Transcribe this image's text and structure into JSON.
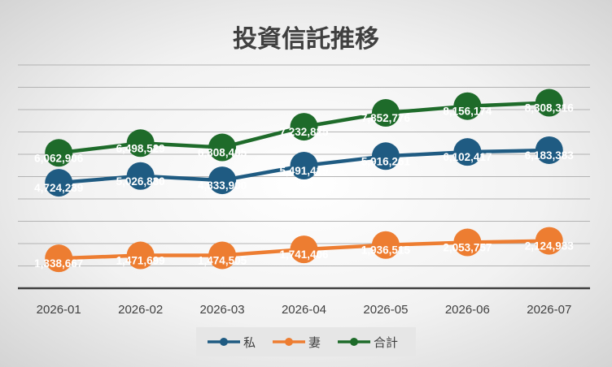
{
  "chart_data": {
    "type": "line",
    "title": "投資信託推移",
    "categories": [
      "2026-01",
      "2026-02",
      "2026-03",
      "2026-04",
      "2026-05",
      "2026-06",
      "2026-07"
    ],
    "series": [
      {
        "name": "私",
        "color": "#1f5b82",
        "values": [
          4724239,
          5026830,
          4833900,
          5491419,
          5916261,
          6102417,
          6183383
        ],
        "labels": [
          "4,724,239",
          "5,026,830",
          "4,833,900",
          "5,491,419",
          "5,916,261",
          "6,102,417",
          "6,183,383"
        ]
      },
      {
        "name": "妻",
        "color": "#ed7d31",
        "values": [
          1338667,
          1471699,
          1474505,
          1741406,
          1936515,
          2053757,
          2124933
        ],
        "labels": [
          "1,338,667",
          "1,471,699",
          "1,474,505",
          "1,741,406",
          "1,936,515",
          "2,053,757",
          "2,124,933"
        ]
      },
      {
        "name": "合計",
        "color": "#1e6b2a",
        "values": [
          6062906,
          6498529,
          6308405,
          7232825,
          7852776,
          8156174,
          8308316
        ],
        "labels": [
          "6,062,906",
          "6,498,529",
          "6,308,405",
          "7,232,825",
          "7,852,776",
          "8,156,174",
          "8,308,316"
        ]
      }
    ],
    "ylim": [
      0,
      10000000
    ],
    "y_axis_labels_shown": false,
    "grid": true,
    "legend": "bottom"
  }
}
